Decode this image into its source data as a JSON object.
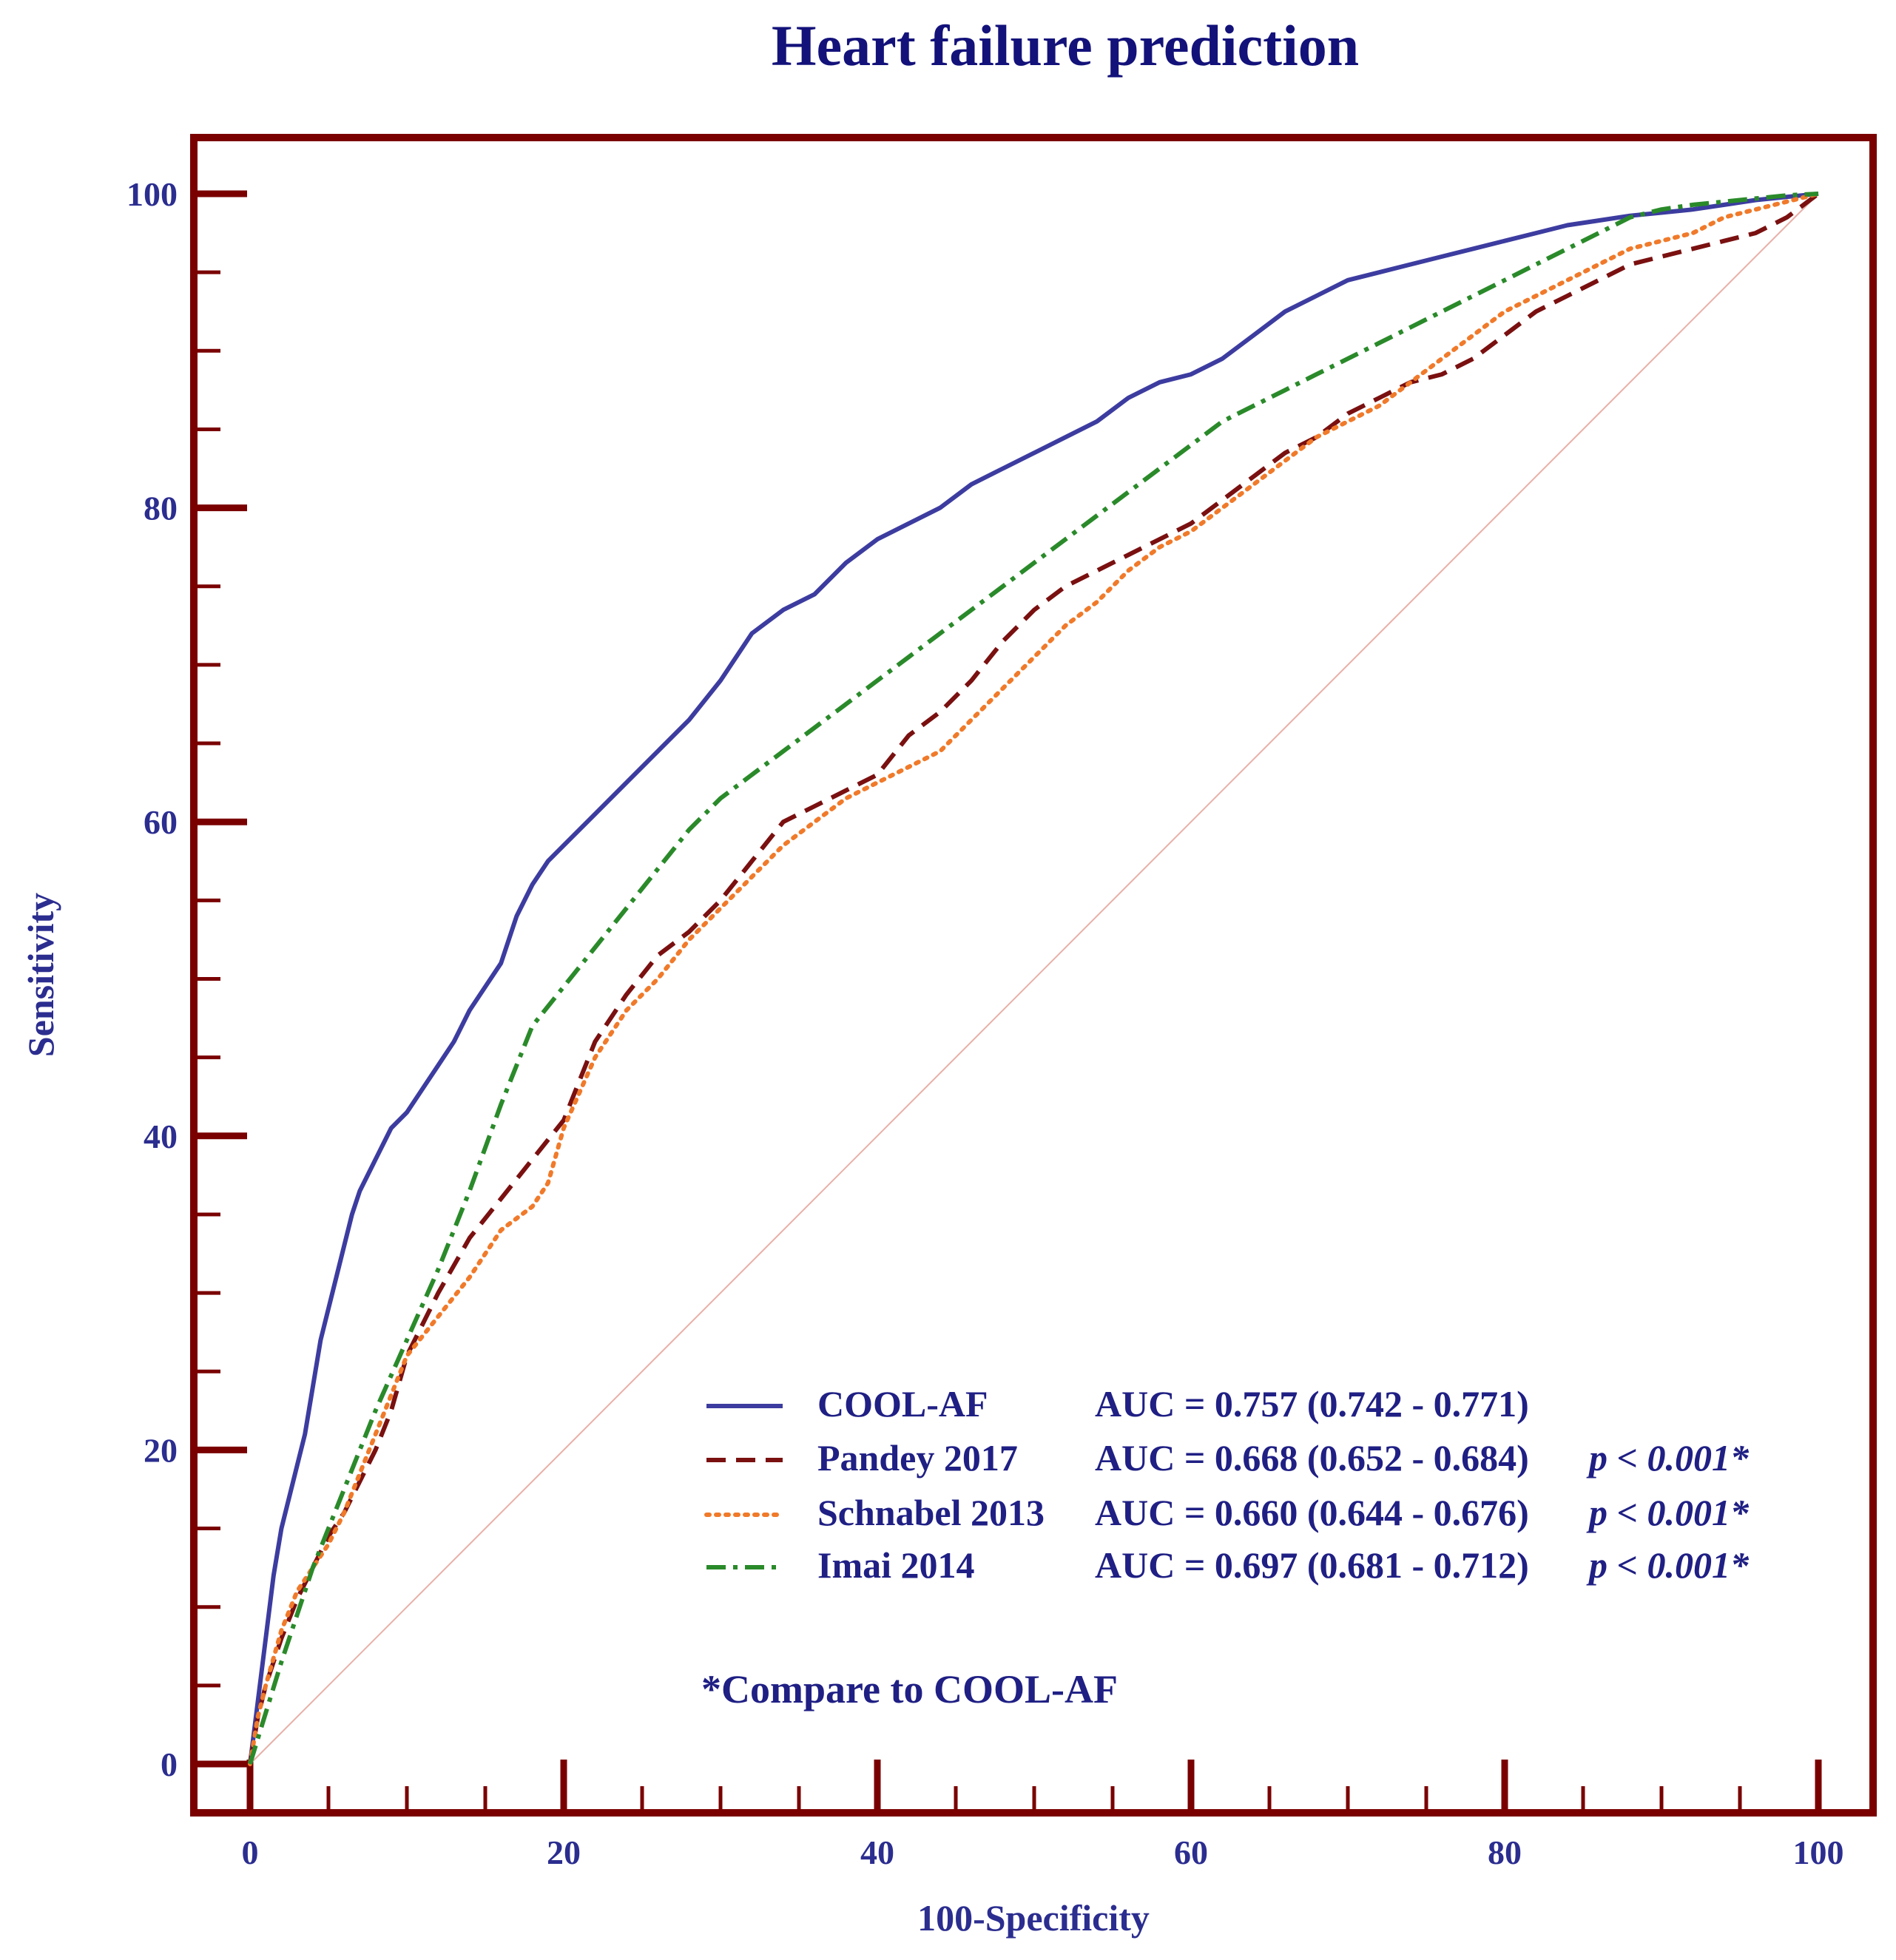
{
  "chart_data": {
    "type": "line",
    "title": "Heart failure prediction",
    "xlabel": "100-Specificity",
    "ylabel": "Sensitivity",
    "xlim": [
      0,
      100
    ],
    "ylim": [
      0,
      100
    ],
    "x_ticks": [
      "0",
      "20",
      "40",
      "60",
      "80",
      "100"
    ],
    "y_ticks": [
      "0",
      "20",
      "40",
      "60",
      "80",
      "100"
    ],
    "legend_position": "bottom-right",
    "colors": {
      "frame": "#7a0000",
      "text": "#1f1f84",
      "reference": "#e8b0a8"
    },
    "reference_line": {
      "x": [
        0,
        100
      ],
      "y": [
        0,
        100
      ]
    },
    "series": [
      {
        "name": "COOL-AF",
        "auc_text": "AUC = 0.757 (0.742 - 0.771)",
        "p_text": "",
        "color": "#3c3ca0",
        "style": "solid",
        "x": [
          0,
          0.5,
          1,
          1.5,
          2,
          2.5,
          3,
          3.5,
          4,
          4.5,
          5,
          5.5,
          6,
          6.5,
          7,
          7.5,
          8,
          8.5,
          9,
          10,
          11,
          12,
          13,
          14,
          15,
          16,
          17,
          18,
          19,
          20,
          22,
          24,
          26,
          28,
          30,
          32,
          34,
          36,
          38,
          40,
          42,
          44,
          46,
          48,
          50,
          52,
          54,
          56,
          58,
          60,
          62,
          64,
          66,
          68,
          70,
          72,
          74,
          76,
          78,
          80,
          82,
          84,
          86,
          88,
          90,
          92,
          94,
          96,
          98,
          100
        ],
        "y": [
          0,
          4,
          8,
          12,
          15,
          17,
          19,
          21,
          24,
          27,
          29,
          31,
          33,
          35,
          36.5,
          37.5,
          38.5,
          39.5,
          40.5,
          41.5,
          43,
          44.5,
          46,
          48,
          49.5,
          51,
          54,
          56,
          57.5,
          58.5,
          60.5,
          62.5,
          64.5,
          66.5,
          69,
          72,
          73.5,
          74.5,
          76.5,
          78,
          79,
          80,
          81.5,
          82.5,
          83.5,
          84.5,
          85.5,
          87,
          88,
          88.5,
          89.5,
          91,
          92.5,
          93.5,
          94.5,
          95,
          95.5,
          96,
          96.5,
          97,
          97.5,
          98,
          98.3,
          98.6,
          98.8,
          99,
          99.3,
          99.6,
          99.8,
          100
        ]
      },
      {
        "name": "Pandey 2017",
        "auc_text": "AUC = 0.668 (0.652 - 0.684)",
        "p_text": "p < 0.001*",
        "color": "#7a1010",
        "style": "dashed",
        "x": [
          0,
          0.5,
          1,
          2,
          3,
          4,
          5,
          6,
          7,
          8,
          9,
          10,
          12,
          14,
          16,
          18,
          20,
          22,
          24,
          26,
          28,
          30,
          32,
          34,
          36,
          38,
          40,
          42,
          44,
          46,
          48,
          50,
          52,
          54,
          56,
          58,
          60,
          62,
          64,
          66,
          68,
          70,
          72,
          74,
          76,
          78,
          80,
          82,
          84,
          86,
          88,
          90,
          92,
          94,
          96,
          98,
          100
        ],
        "y": [
          0,
          3,
          5,
          8,
          10.5,
          12.5,
          14.5,
          16,
          18,
          20,
          22.5,
          26,
          30,
          33.5,
          36,
          38.5,
          41,
          46,
          49,
          51.5,
          53,
          55,
          57.5,
          60,
          61,
          62,
          63,
          65.5,
          67,
          69,
          71.5,
          73.5,
          75,
          76,
          77,
          78,
          79,
          80.5,
          82,
          83.5,
          84.5,
          86,
          87,
          88,
          88.5,
          89.5,
          91,
          92.5,
          93.5,
          94.5,
          95.5,
          96,
          96.5,
          97,
          97.5,
          98.5,
          100
        ]
      },
      {
        "name": "Schnabel 2013",
        "auc_text": "AUC = 0.660 (0.644 - 0.676)",
        "p_text": "p < 0.001*",
        "color": "#f07a2a",
        "style": "dotted",
        "x": [
          0,
          0.5,
          1,
          2,
          3,
          4,
          5,
          6,
          7,
          8,
          9,
          10,
          12,
          14,
          16,
          18,
          19,
          20,
          22,
          24,
          26,
          28,
          30,
          32,
          34,
          36,
          38,
          40,
          42,
          44,
          46,
          48,
          50,
          52,
          54,
          56,
          58,
          60,
          62,
          64,
          66,
          68,
          70,
          72,
          74,
          76,
          78,
          80,
          82,
          84,
          86,
          88,
          90,
          92,
          94,
          96,
          98,
          100
        ],
        "y": [
          0,
          3,
          5,
          8.5,
          11,
          12.5,
          14,
          16,
          18.5,
          21,
          23.5,
          26,
          28.5,
          31,
          34,
          35.5,
          37,
          40.5,
          45,
          48,
          50,
          52.5,
          54.5,
          56.5,
          58.5,
          60,
          61.5,
          62.5,
          63.5,
          64.5,
          66.5,
          68.5,
          70.5,
          72.5,
          74,
          76,
          77.5,
          78.5,
          80,
          81.5,
          83,
          84.5,
          85.5,
          86.5,
          88,
          89.5,
          91,
          92.5,
          93.5,
          94.5,
          95.5,
          96.5,
          97,
          97.5,
          98.5,
          99,
          99.5,
          100
        ]
      },
      {
        "name": "Imai 2014",
        "auc_text": "AUC = 0.697 (0.681 - 0.712)",
        "p_text": "p < 0.001*",
        "color": "#2a8a2a",
        "style": "dash-dot",
        "x": [
          0,
          2,
          4,
          6,
          8,
          10,
          12,
          14,
          16,
          18,
          20,
          22,
          24,
          26,
          28,
          30,
          32,
          34,
          36,
          38,
          40,
          42,
          44,
          46,
          48,
          50,
          52,
          54,
          56,
          58,
          60,
          62,
          64,
          66,
          68,
          70,
          72,
          74,
          76,
          78,
          80,
          82,
          84,
          86,
          88,
          90,
          92,
          94,
          96,
          98,
          100
        ],
        "y": [
          0,
          6.5,
          12.5,
          17.5,
          22.5,
          27,
          31.5,
          36.5,
          42,
          47,
          49.5,
          52,
          54.5,
          57,
          59.5,
          61.5,
          63,
          64.5,
          66,
          67.5,
          69,
          70.5,
          72,
          73.5,
          75,
          76.5,
          78,
          79.5,
          81,
          82.5,
          84,
          85.5,
          86.5,
          87.5,
          88.5,
          89.5,
          90.5,
          91.5,
          92.5,
          93.5,
          94.5,
          95.5,
          96.5,
          97.5,
          98.5,
          99,
          99.3,
          99.5,
          99.7,
          99.9,
          100
        ]
      }
    ],
    "note": "*Compare to COOL-AF"
  }
}
